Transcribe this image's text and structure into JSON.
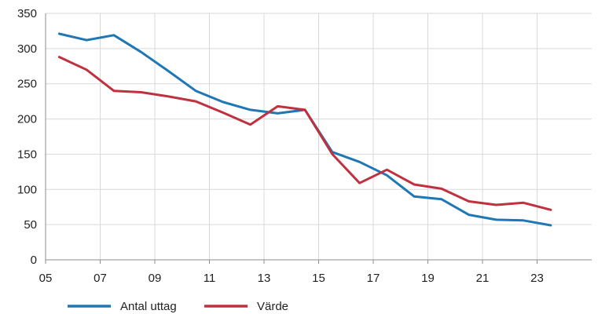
{
  "chart_data": {
    "type": "line",
    "title": "",
    "xlabel": "",
    "ylabel": "",
    "x_tick_labels": [
      "05",
      "07",
      "09",
      "11",
      "13",
      "15",
      "17",
      "19",
      "21",
      "23"
    ],
    "x_ticks": [
      2005,
      2007,
      2009,
      2011,
      2013,
      2015,
      2017,
      2019,
      2021,
      2023
    ],
    "xlim": [
      2005,
      2025
    ],
    "ylim": [
      0,
      350
    ],
    "y_ticks": [
      0,
      50,
      100,
      150,
      200,
      250,
      300,
      350
    ],
    "grid": true,
    "legend_position": "bottom-left",
    "x": [
      2005.5,
      2006.5,
      2007.5,
      2008.5,
      2009.5,
      2010.5,
      2011.5,
      2012.5,
      2013.5,
      2014.5,
      2015.5,
      2016.5,
      2017.5,
      2018.5,
      2019.5,
      2020.5,
      2021.5,
      2022.5,
      2023.5
    ],
    "series": [
      {
        "name": "Antal uttag",
        "color": "#1f77b4",
        "values": [
          321,
          312,
          319,
          295,
          268,
          240,
          224,
          213,
          208,
          213,
          153,
          139,
          120,
          90,
          86,
          64,
          57,
          56,
          49
        ]
      },
      {
        "name": "Värde",
        "color": "#c0313f",
        "values": [
          288,
          270,
          240,
          238,
          232,
          225,
          209,
          192,
          218,
          213,
          150,
          109,
          128,
          107,
          101,
          83,
          78,
          81,
          71
        ]
      }
    ]
  }
}
